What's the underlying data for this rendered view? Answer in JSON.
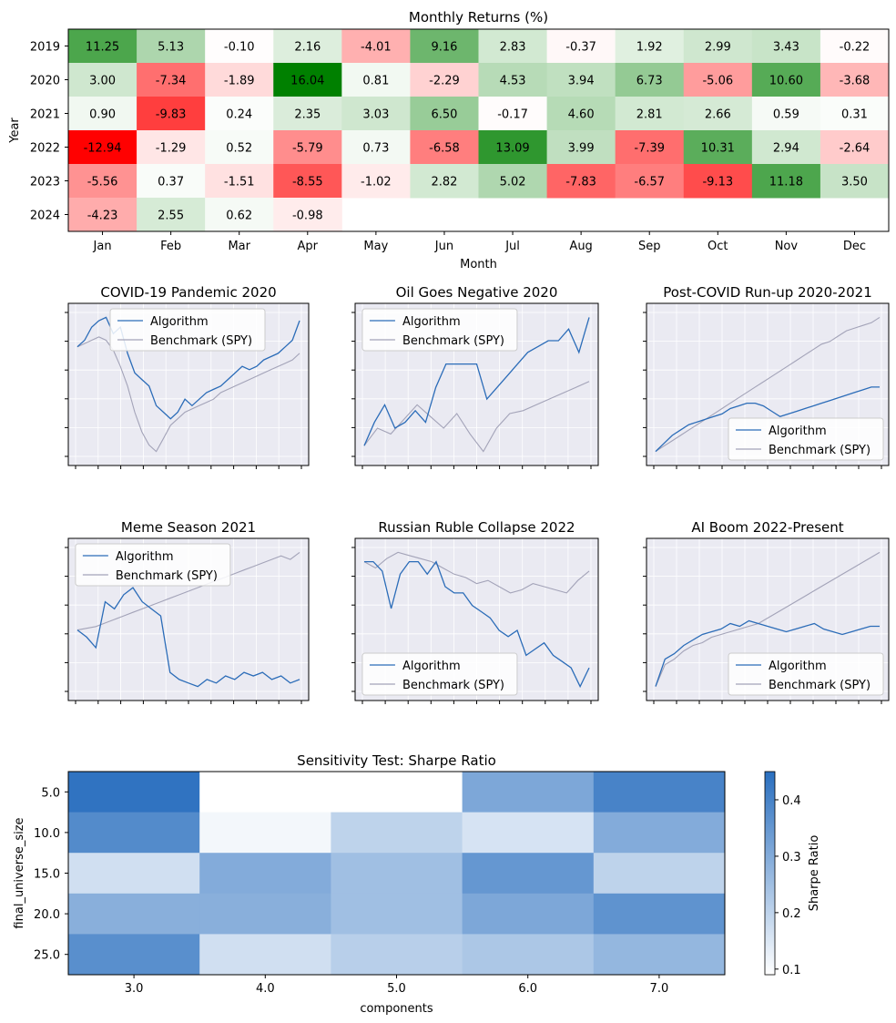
{
  "chart_data": [
    {
      "type": "heatmap",
      "title": "Monthly Returns (%)",
      "xlabel": "Month",
      "ylabel": "Year",
      "x_categories": [
        "Jan",
        "Feb",
        "Mar",
        "Apr",
        "May",
        "Jun",
        "Jul",
        "Aug",
        "Sep",
        "Oct",
        "Nov",
        "Dec"
      ],
      "y_categories": [
        "2019",
        "2020",
        "2021",
        "2022",
        "2023",
        "2024"
      ],
      "values": [
        [
          11.25,
          5.13,
          -0.1,
          2.16,
          -4.01,
          9.16,
          2.83,
          -0.37,
          1.92,
          2.99,
          3.43,
          -0.22
        ],
        [
          3.0,
          -7.34,
          -1.89,
          16.04,
          0.81,
          -2.29,
          4.53,
          3.94,
          6.73,
          -5.06,
          10.6,
          -3.68
        ],
        [
          0.9,
          -9.83,
          0.24,
          2.35,
          3.03,
          6.5,
          -0.17,
          4.6,
          2.81,
          2.66,
          0.59,
          0.31
        ],
        [
          -12.94,
          -1.29,
          0.52,
          -5.79,
          0.73,
          -6.58,
          13.09,
          3.99,
          -7.39,
          10.31,
          2.94,
          -2.64
        ],
        [
          -5.56,
          0.37,
          -1.51,
          -8.55,
          -1.02,
          2.82,
          5.02,
          -7.83,
          -6.57,
          -9.13,
          11.18,
          3.5
        ],
        [
          -4.23,
          2.55,
          0.62,
          -0.98,
          null,
          null,
          null,
          null,
          null,
          null,
          null,
          null
        ]
      ],
      "value_format": "2 decimals",
      "colors": {
        "positive": "#008000",
        "negative": "#ff0000",
        "zero": "#ffffff"
      }
    },
    {
      "type": "line",
      "title": "COVID-19 Pandemic 2020",
      "legend_position": "upper-center",
      "series": [
        {
          "name": "Algorithm",
          "color": "#2b6cb8",
          "values": [
            100,
            101,
            103,
            104,
            104.5,
            102,
            103,
            99,
            96,
            95,
            94,
            91,
            90,
            89,
            90,
            92,
            91,
            92,
            93,
            93.5,
            94,
            95,
            96,
            97,
            96.5,
            97,
            98,
            98.5,
            99,
            100,
            101,
            104
          ]
        },
        {
          "name": "Benchmark (SPY)",
          "color": "#a3a3b8",
          "values": [
            100,
            100.5,
            101,
            101.5,
            101,
            99.5,
            97,
            94,
            90,
            87,
            85,
            84,
            86,
            88,
            89,
            90,
            90.5,
            91,
            91.5,
            92,
            93,
            93.5,
            94,
            94.5,
            95,
            95.5,
            96,
            96.5,
            97,
            97.5,
            98,
            99
          ]
        }
      ]
    },
    {
      "type": "line",
      "title": "Oil Goes Negative 2020",
      "legend_position": "upper-left",
      "series": [
        {
          "name": "Algorithm",
          "color": "#2b6cb8",
          "values": [
            60,
            68,
            74,
            66,
            68,
            72,
            68,
            80,
            88,
            88,
            88,
            88,
            76,
            80,
            84,
            88,
            92,
            94,
            96,
            96,
            100,
            92,
            104
          ]
        },
        {
          "name": "Benchmark (SPY)",
          "color": "#a3a3b8",
          "values": [
            60,
            66,
            64,
            69,
            74,
            70,
            66,
            71,
            64,
            58,
            66,
            71,
            72,
            74,
            76,
            78,
            80,
            82
          ]
        }
      ]
    },
    {
      "type": "line",
      "title": "Post-COVID Run-up 2020-2021",
      "legend_position": "lower-right",
      "series": [
        {
          "name": "Algorithm",
          "color": "#2b6cb8",
          "values": [
            100,
            103,
            106,
            108,
            110,
            111,
            112,
            113,
            114,
            116,
            117,
            118,
            118,
            117,
            115,
            113,
            114,
            115,
            116,
            117,
            118,
            119,
            120,
            121,
            122,
            123,
            124,
            124
          ]
        },
        {
          "name": "Benchmark (SPY)",
          "color": "#a3a3b8",
          "values": [
            100,
            102,
            104,
            106,
            108,
            110,
            112,
            114,
            116,
            118,
            120,
            122,
            124,
            126,
            128,
            130,
            132,
            134,
            136,
            138,
            140,
            141,
            143,
            145,
            146,
            147,
            148,
            150
          ]
        }
      ]
    },
    {
      "type": "line",
      "title": "Meme Season 2021",
      "legend_position": "upper-left",
      "series": [
        {
          "name": "Algorithm",
          "color": "#2b6cb8",
          "values": [
            100,
            98,
            95,
            108,
            106,
            110,
            112,
            108,
            106,
            104,
            88,
            86,
            85,
            84,
            86,
            85,
            87,
            86,
            88,
            87,
            88,
            86,
            87,
            85,
            86
          ]
        },
        {
          "name": "Benchmark (SPY)",
          "color": "#a3a3b8",
          "values": [
            100,
            100.5,
            101,
            102,
            103,
            104,
            105,
            106,
            107,
            108,
            109,
            110,
            111,
            112,
            113,
            114,
            115,
            116,
            117,
            118,
            119,
            120,
            121,
            120,
            122
          ]
        }
      ]
    },
    {
      "type": "line",
      "title": "Russian Ruble Collapse 2022",
      "legend_position": "lower-left",
      "series": [
        {
          "name": "Algorithm",
          "color": "#2b6cb8",
          "values": [
            100,
            100,
            97,
            85,
            96,
            100,
            100,
            96,
            100,
            92,
            90,
            90,
            86,
            84,
            82,
            78,
            76,
            78,
            70,
            72,
            74,
            70,
            68,
            66,
            60,
            66
          ]
        },
        {
          "name": "Benchmark (SPY)",
          "color": "#a3a3b8",
          "values": [
            100,
            98,
            101,
            103,
            102,
            101,
            100,
            98,
            96,
            95,
            93,
            94,
            92,
            90,
            91,
            93,
            92,
            91,
            90,
            94,
            97
          ]
        }
      ]
    },
    {
      "type": "line",
      "title": "AI Boom 2022-Present",
      "legend_position": "lower-right",
      "series": [
        {
          "name": "Algorithm",
          "color": "#2b6cb8",
          "values": [
            80,
            90,
            92,
            95,
            97,
            99,
            100,
            101,
            103,
            102,
            104,
            103,
            102,
            101,
            100,
            101,
            102,
            103,
            101,
            100,
            99,
            100,
            101,
            102,
            102
          ]
        },
        {
          "name": "Benchmark (SPY)",
          "color": "#a3a3b8",
          "values": [
            80,
            88,
            90,
            93,
            95,
            96,
            98,
            99,
            100,
            101,
            102,
            103,
            105,
            107,
            109,
            111,
            113,
            115,
            117,
            119,
            121,
            123,
            125,
            127,
            129
          ]
        }
      ]
    },
    {
      "type": "heatmap",
      "title": "Sensitivity Test: Sharpe Ratio",
      "xlabel": "components",
      "ylabel": "final_universe_size",
      "x_categories": [
        "3.0",
        "4.0",
        "5.0",
        "6.0",
        "7.0"
      ],
      "y_categories": [
        "5.0",
        "10.0",
        "15.0",
        "20.0",
        "25.0"
      ],
      "values": [
        [
          0.44,
          0.09,
          0.09,
          0.31,
          0.4
        ],
        [
          0.38,
          0.11,
          0.2,
          0.16,
          0.3
        ],
        [
          0.17,
          0.3,
          0.25,
          0.35,
          0.2
        ],
        [
          0.29,
          0.29,
          0.25,
          0.31,
          0.36
        ],
        [
          0.37,
          0.17,
          0.21,
          0.23,
          0.27
        ]
      ],
      "colorbar": {
        "label": "Sharpe Ratio",
        "ticks": [
          "0.1",
          "0.2",
          "0.3",
          "0.4"
        ],
        "min": 0.09,
        "max": 0.45
      },
      "colors": {
        "low": "#ffffff",
        "high": "#2a6fbf"
      }
    }
  ]
}
